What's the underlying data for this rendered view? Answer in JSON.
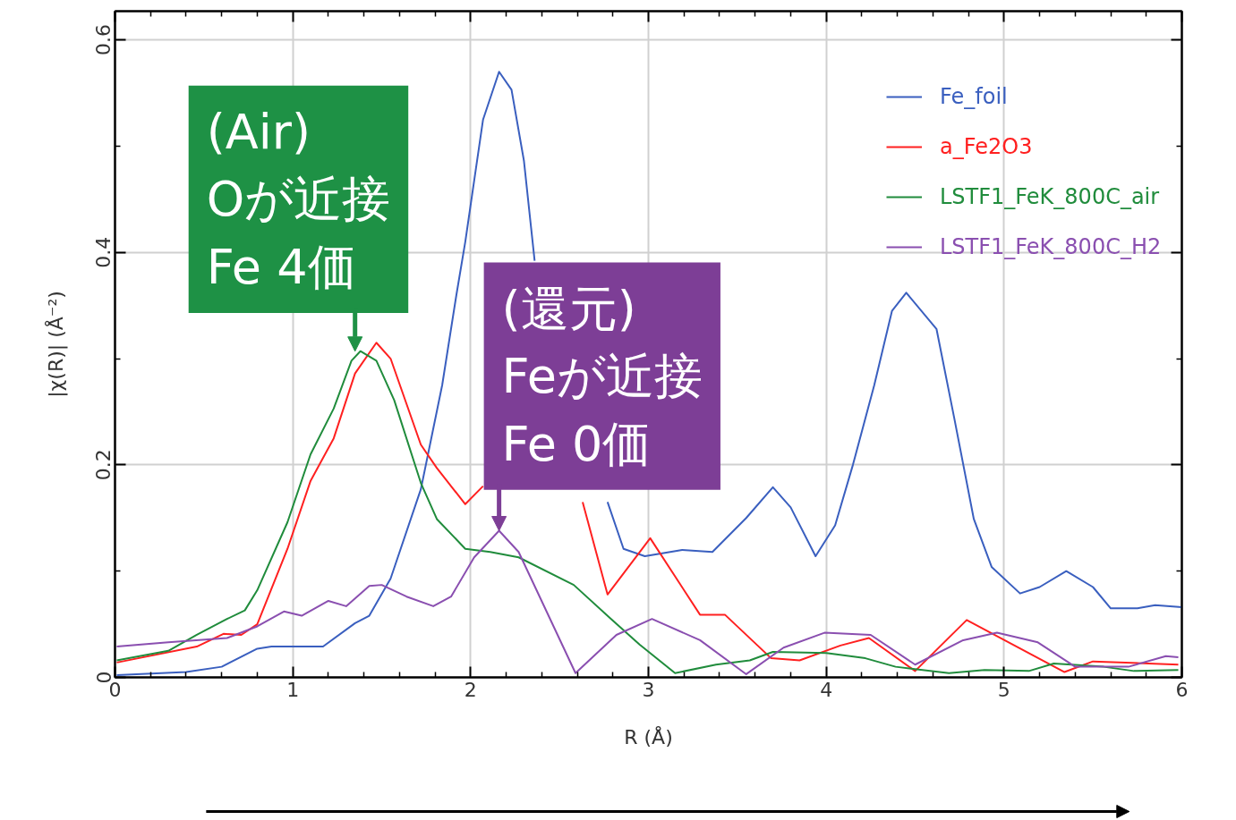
{
  "chart_data": {
    "type": "line",
    "xlabel": "R (Å)",
    "ylabel": "|χ(R)| (Å⁻²)",
    "xlim": [
      0,
      6
    ],
    "ylim": [
      0,
      0.627
    ],
    "xticks": [
      0,
      1,
      2,
      3,
      4,
      5,
      6
    ],
    "yticks": [
      0,
      0.2,
      0.4,
      0.6
    ],
    "grid": true,
    "legend": "top right",
    "tick_labels": "xy",
    "series": [
      {
        "name": "Fe_foil",
        "color": "#3a5fbf",
        "x": [
          0.01,
          0.4,
          0.6,
          0.8,
          0.88,
          1.17,
          1.35,
          1.43,
          1.55,
          1.72,
          1.84,
          1.92,
          1.97,
          2.07,
          2.16,
          2.23,
          2.3,
          2.36,
          2.55,
          2.77,
          2.86,
          2.98,
          3.19,
          3.36,
          3.55,
          3.7,
          3.8,
          3.94,
          4.05,
          4.15,
          4.27,
          4.37,
          4.45,
          4.62,
          4.72,
          4.83,
          4.93,
          5.09,
          5.2,
          5.35,
          5.5,
          5.6,
          5.75,
          5.85,
          6.0
        ],
        "values": [
          0.002,
          0.005,
          0.01,
          0.027,
          0.029,
          0.029,
          0.051,
          0.058,
          0.093,
          0.177,
          0.275,
          0.36,
          0.41,
          0.525,
          0.57,
          0.553,
          0.486,
          0.392,
          null,
          0.165,
          0.121,
          0.114,
          0.12,
          0.118,
          0.15,
          0.179,
          0.16,
          0.114,
          0.143,
          0.2,
          0.275,
          0.345,
          0.362,
          0.328,
          0.244,
          0.149,
          0.104,
          0.079,
          0.085,
          0.1,
          0.085,
          0.065,
          0.065,
          0.068,
          0.066
        ]
      },
      {
        "name": "a_Fe2O3",
        "color": "#ff2020",
        "x": [
          0.01,
          0.46,
          0.61,
          0.71,
          0.8,
          0.97,
          1.1,
          1.23,
          1.35,
          1.47,
          1.55,
          1.72,
          1.81,
          1.97,
          2.07,
          2.35,
          2.63,
          2.77,
          3.01,
          3.29,
          3.43,
          3.69,
          3.85,
          4.08,
          4.24,
          4.5,
          4.79,
          5.34,
          5.5,
          5.98
        ],
        "values": [
          0.014,
          0.029,
          0.041,
          0.04,
          0.05,
          0.121,
          0.185,
          0.225,
          0.286,
          0.315,
          0.3,
          0.219,
          0.197,
          0.163,
          0.18,
          null,
          0.165,
          0.078,
          0.131,
          0.059,
          0.059,
          0.018,
          0.016,
          0.03,
          0.037,
          0.006,
          0.054,
          0.005,
          0.015,
          0.012
        ]
      },
      {
        "name": "LSTF1_FeK_800C_air",
        "color": "#208c3c",
        "x": [
          0.01,
          0.3,
          0.46,
          0.63,
          0.73,
          0.8,
          0.97,
          1.1,
          1.23,
          1.33,
          1.38,
          1.47,
          1.57,
          1.72,
          1.81,
          1.97,
          2.11,
          2.27,
          2.58,
          2.79,
          2.95,
          3.15,
          3.38,
          3.57,
          3.7,
          4.0,
          4.22,
          4.39,
          4.69,
          4.89,
          5.14,
          5.28,
          5.56,
          5.73,
          5.98
        ],
        "values": [
          0.016,
          0.025,
          0.04,
          0.055,
          0.063,
          0.082,
          0.146,
          0.21,
          0.253,
          0.298,
          0.307,
          0.298,
          0.261,
          0.183,
          0.149,
          0.121,
          0.118,
          0.113,
          0.087,
          0.055,
          0.031,
          0.004,
          0.012,
          0.016,
          0.024,
          0.023,
          0.018,
          0.01,
          0.004,
          0.007,
          0.006,
          0.013,
          0.01,
          0.006,
          0.007
        ]
      },
      {
        "name": "LSTF1_FeK_800C_H2",
        "color": "#8a4fb0",
        "x": [
          0.01,
          0.3,
          0.63,
          0.8,
          0.95,
          1.05,
          1.2,
          1.3,
          1.43,
          1.5,
          1.64,
          1.79,
          1.89,
          2.02,
          2.16,
          2.27,
          2.59,
          2.82,
          3.02,
          3.29,
          3.55,
          3.76,
          3.99,
          4.25,
          4.5,
          4.77,
          4.96,
          5.19,
          5.4,
          5.7,
          5.91,
          5.98
        ],
        "values": [
          0.029,
          0.033,
          0.037,
          0.048,
          0.062,
          0.058,
          0.072,
          0.067,
          0.086,
          0.087,
          0.076,
          0.067,
          0.076,
          0.113,
          0.138,
          0.118,
          0.004,
          0.04,
          0.055,
          0.035,
          0.003,
          0.028,
          0.042,
          0.04,
          0.012,
          0.035,
          0.042,
          0.033,
          0.01,
          0.01,
          0.02,
          0.019
        ]
      }
    ],
    "annotations": [
      {
        "text": "(Air)\nOが近接\nFe 4価",
        "x": 1.35,
        "y": 0.307
      },
      {
        "text": "(還元)\nFeが近接\nFe 0価",
        "x": 2.16,
        "y": 0.138
      }
    ]
  }
}
